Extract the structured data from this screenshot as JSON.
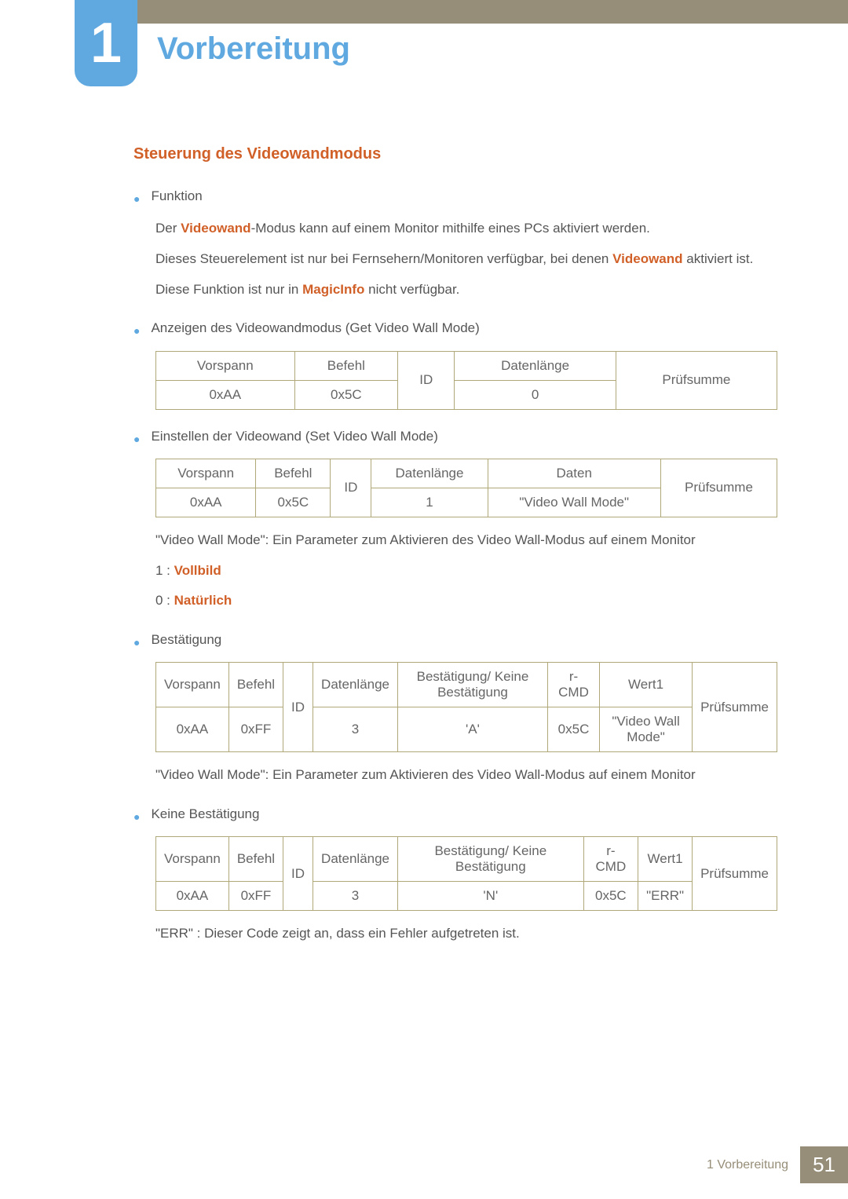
{
  "chapter": {
    "number": "1",
    "title": "Vorbereitung"
  },
  "section": {
    "title": "Steuerung des Videowandmodus"
  },
  "funktion": {
    "label": "Funktion",
    "line1_pre": "Der ",
    "line1_kw": "Videowand",
    "line1_post": "-Modus kann auf einem Monitor mithilfe eines PCs aktiviert werden.",
    "line2_pre": "Dieses Steuerelement ist nur bei Fernsehern/Monitoren verfügbar, bei denen ",
    "line2_kw": "Videowand",
    "line2_post": " aktiviert ist.",
    "line3_pre": "Diese Funktion ist nur in ",
    "line3_kw": "MagicInfo",
    "line3_post": " nicht verfügbar."
  },
  "get_mode": {
    "label": "Anzeigen des Videowandmodus (Get Video Wall Mode)",
    "h": {
      "c0": "Vorspann",
      "c1": "Befehl",
      "c2": "ID",
      "c3": "Datenlänge",
      "c4": "Prüfsumme"
    },
    "r": {
      "c0": "0xAA",
      "c1": "0x5C",
      "c3": "0"
    }
  },
  "set_mode": {
    "label": "Einstellen der Videowand (Set Video Wall Mode)",
    "h": {
      "c0": "Vorspann",
      "c1": "Befehl",
      "c2": "ID",
      "c3": "Datenlänge",
      "c4": "Daten",
      "c5": "Prüfsumme"
    },
    "r": {
      "c0": "0xAA",
      "c1": "0x5C",
      "c3": "1",
      "c4": "\"Video Wall Mode\""
    },
    "desc": "\"Video Wall Mode\": Ein Parameter zum Aktivieren des Video Wall-Modus auf einem Monitor",
    "opt1_pre": "1 : ",
    "opt1_kw": "Vollbild",
    "opt0_pre": "0 : ",
    "opt0_kw": "Natürlich"
  },
  "ack": {
    "label": "Bestätigung",
    "h": {
      "c0": "Vorspann",
      "c1": "Befehl",
      "c2": "ID",
      "c3": "Datenlänge",
      "c4": "Bestätigung/ Keine Bestätigung",
      "c5": "r-CMD",
      "c6": "Wert1",
      "c7": "Prüfsumme"
    },
    "r": {
      "c0": "0xAA",
      "c1": "0xFF",
      "c3": "3",
      "c4": "'A'",
      "c5": "0x5C",
      "c6": "\"Video Wall Mode\""
    },
    "desc": "\"Video Wall Mode\": Ein Parameter zum Aktivieren des Video Wall-Modus auf einem Monitor"
  },
  "nak": {
    "label": "Keine Bestätigung",
    "h": {
      "c0": "Vorspann",
      "c1": "Befehl",
      "c2": "ID",
      "c3": "Datenlänge",
      "c4": "Bestätigung/ Keine Bestätigung",
      "c5": "r-CMD",
      "c6": "Wert1",
      "c7": "Prüfsumme"
    },
    "r": {
      "c0": "0xAA",
      "c1": "0xFF",
      "c3": "3",
      "c4": "'N'",
      "c5": "0x5C",
      "c6": "\"ERR\""
    },
    "desc": "\"ERR\" : Dieser Code zeigt an, dass ein Fehler aufgetreten ist."
  },
  "footer": {
    "text": "1 Vorbereitung",
    "page": "51"
  }
}
